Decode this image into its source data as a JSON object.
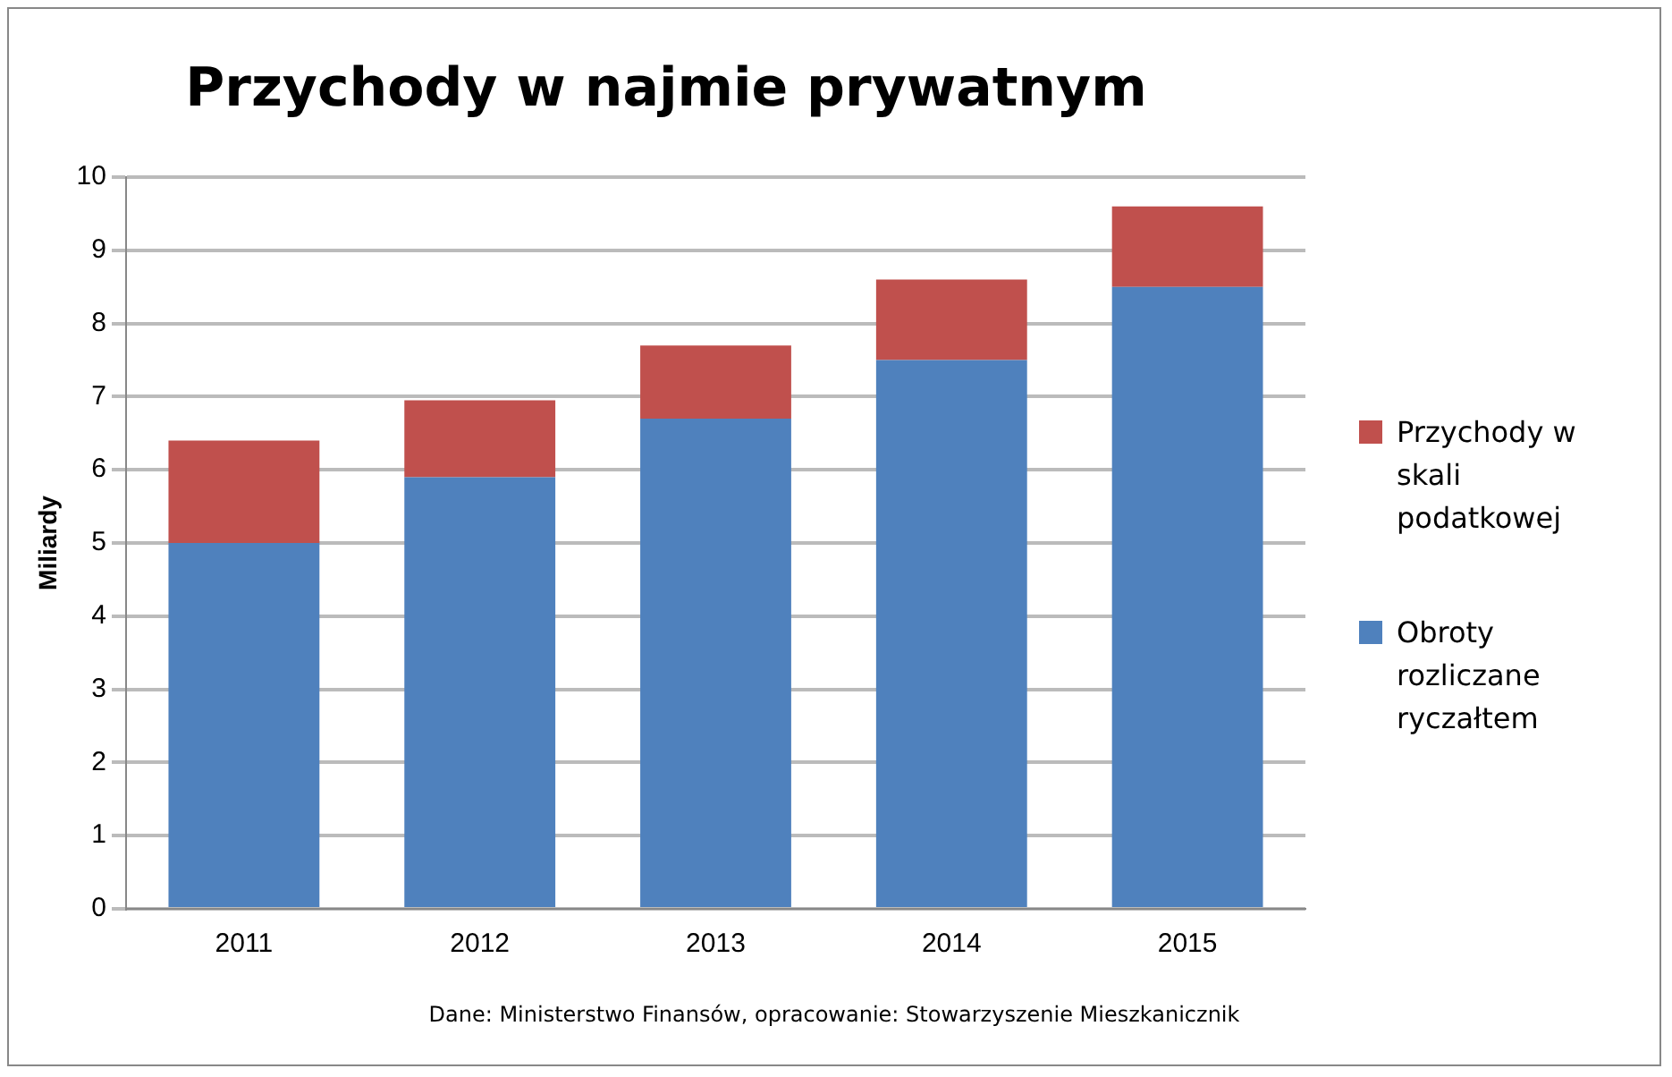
{
  "chart_data": {
    "type": "bar",
    "title": "Przychody w najmie prywatnym",
    "ylabel": "Miliardy",
    "categories": [
      "2011",
      "2012",
      "2013",
      "2014",
      "2015"
    ],
    "stacked": true,
    "series": [
      {
        "name": "Obroty rozliczane ryczałtem",
        "color": "#4f81bd",
        "values": [
          5.0,
          5.9,
          6.7,
          7.5,
          8.5
        ]
      },
      {
        "name": "Przychody w skali podatkowej",
        "color": "#c0504d",
        "values": [
          1.4,
          1.05,
          1.0,
          1.1,
          1.1
        ]
      }
    ],
    "ylim": [
      0,
      10
    ],
    "yticks": [
      0,
      1,
      2,
      3,
      4,
      5,
      6,
      7,
      8,
      9,
      10
    ],
    "grid": "y",
    "legend": "right",
    "annotations": [
      "Dane: Ministerstwo Finansów, opracowanie: Stowarzyszenie Mieszkanicznik"
    ]
  }
}
